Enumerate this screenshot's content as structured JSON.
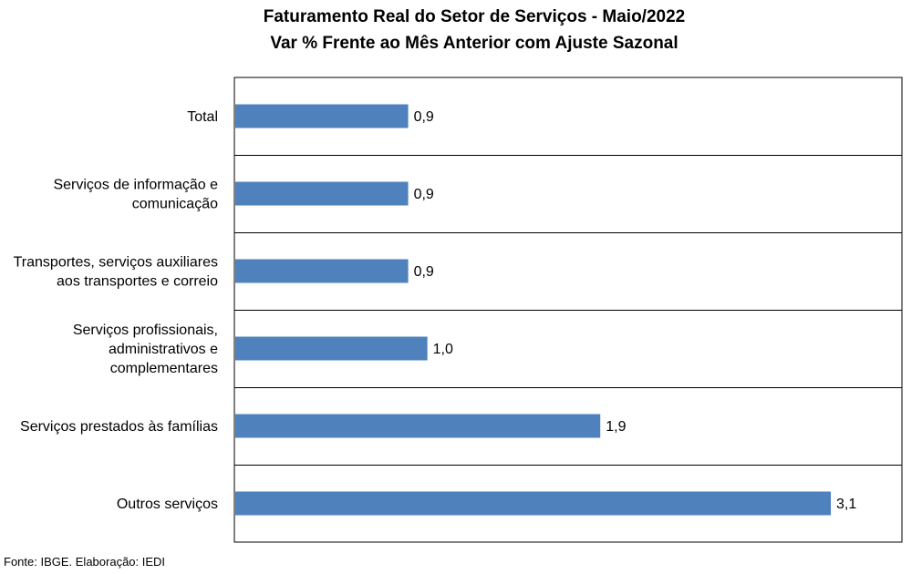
{
  "source": "Fonte: IBGE. Elaboração: IEDI",
  "colors": {
    "bar": "#4f81bd",
    "grid": "#000000"
  },
  "chart_data": {
    "type": "bar",
    "orientation": "horizontal",
    "title": "Faturamento Real do Setor de Serviços - Maio/2022",
    "subtitle": "Var % Frente ao Mês Anterior com Ajuste Sazonal",
    "categories": [
      [
        "Total"
      ],
      [
        "Serviços de informação e",
        "comunicação"
      ],
      [
        "Transportes, serviços auxiliares",
        "aos transportes e correio"
      ],
      [
        "Serviços profissionais,",
        "administrativos e",
        "complementares"
      ],
      [
        "Serviços prestados às famílias"
      ],
      [
        "Outros serviços"
      ]
    ],
    "values": [
      0.9,
      0.9,
      0.9,
      1.0,
      1.9,
      3.1
    ],
    "data_labels": [
      "0,9",
      "0,9",
      "0,9",
      "1,0",
      "1,9",
      "3,1"
    ],
    "xlim": [
      0,
      3.1
    ],
    "grid": "horizontal-category-separators",
    "legend": "none"
  }
}
